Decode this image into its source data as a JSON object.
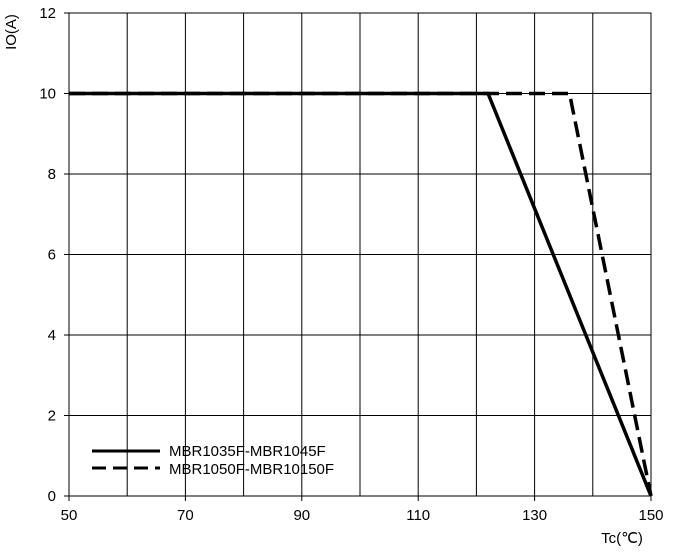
{
  "chart_data": {
    "type": "line",
    "title": "",
    "xlabel": "Tc(℃)",
    "ylabel": "IO(A)",
    "xlim": [
      50,
      150
    ],
    "ylim": [
      0,
      12
    ],
    "x_ticks": [
      "50",
      "70",
      "90",
      "110",
      "130",
      "150"
    ],
    "x_tick_values": [
      50,
      70,
      90,
      110,
      130,
      150
    ],
    "y_ticks": [
      "0",
      "2",
      "4",
      "6",
      "8",
      "10",
      "12"
    ],
    "y_tick_values": [
      0,
      2,
      4,
      6,
      8,
      10,
      12
    ],
    "x_gridlines": [
      50,
      60,
      70,
      80,
      90,
      100,
      110,
      120,
      130,
      140,
      150
    ],
    "y_gridlines": [
      0,
      2,
      4,
      6,
      8,
      10,
      12
    ],
    "grid": true,
    "legend_position": "bottom-left",
    "series": [
      {
        "name": "MBR1035F-MBR1045F",
        "style": "solid",
        "color": "#000000",
        "x": [
          50,
          122,
          150
        ],
        "y": [
          10,
          10,
          0
        ]
      },
      {
        "name": "MBR1050F-MBR10150F",
        "style": "dashed",
        "color": "#000000",
        "x": [
          50,
          136,
          150
        ],
        "y": [
          10,
          10,
          0
        ]
      }
    ]
  }
}
